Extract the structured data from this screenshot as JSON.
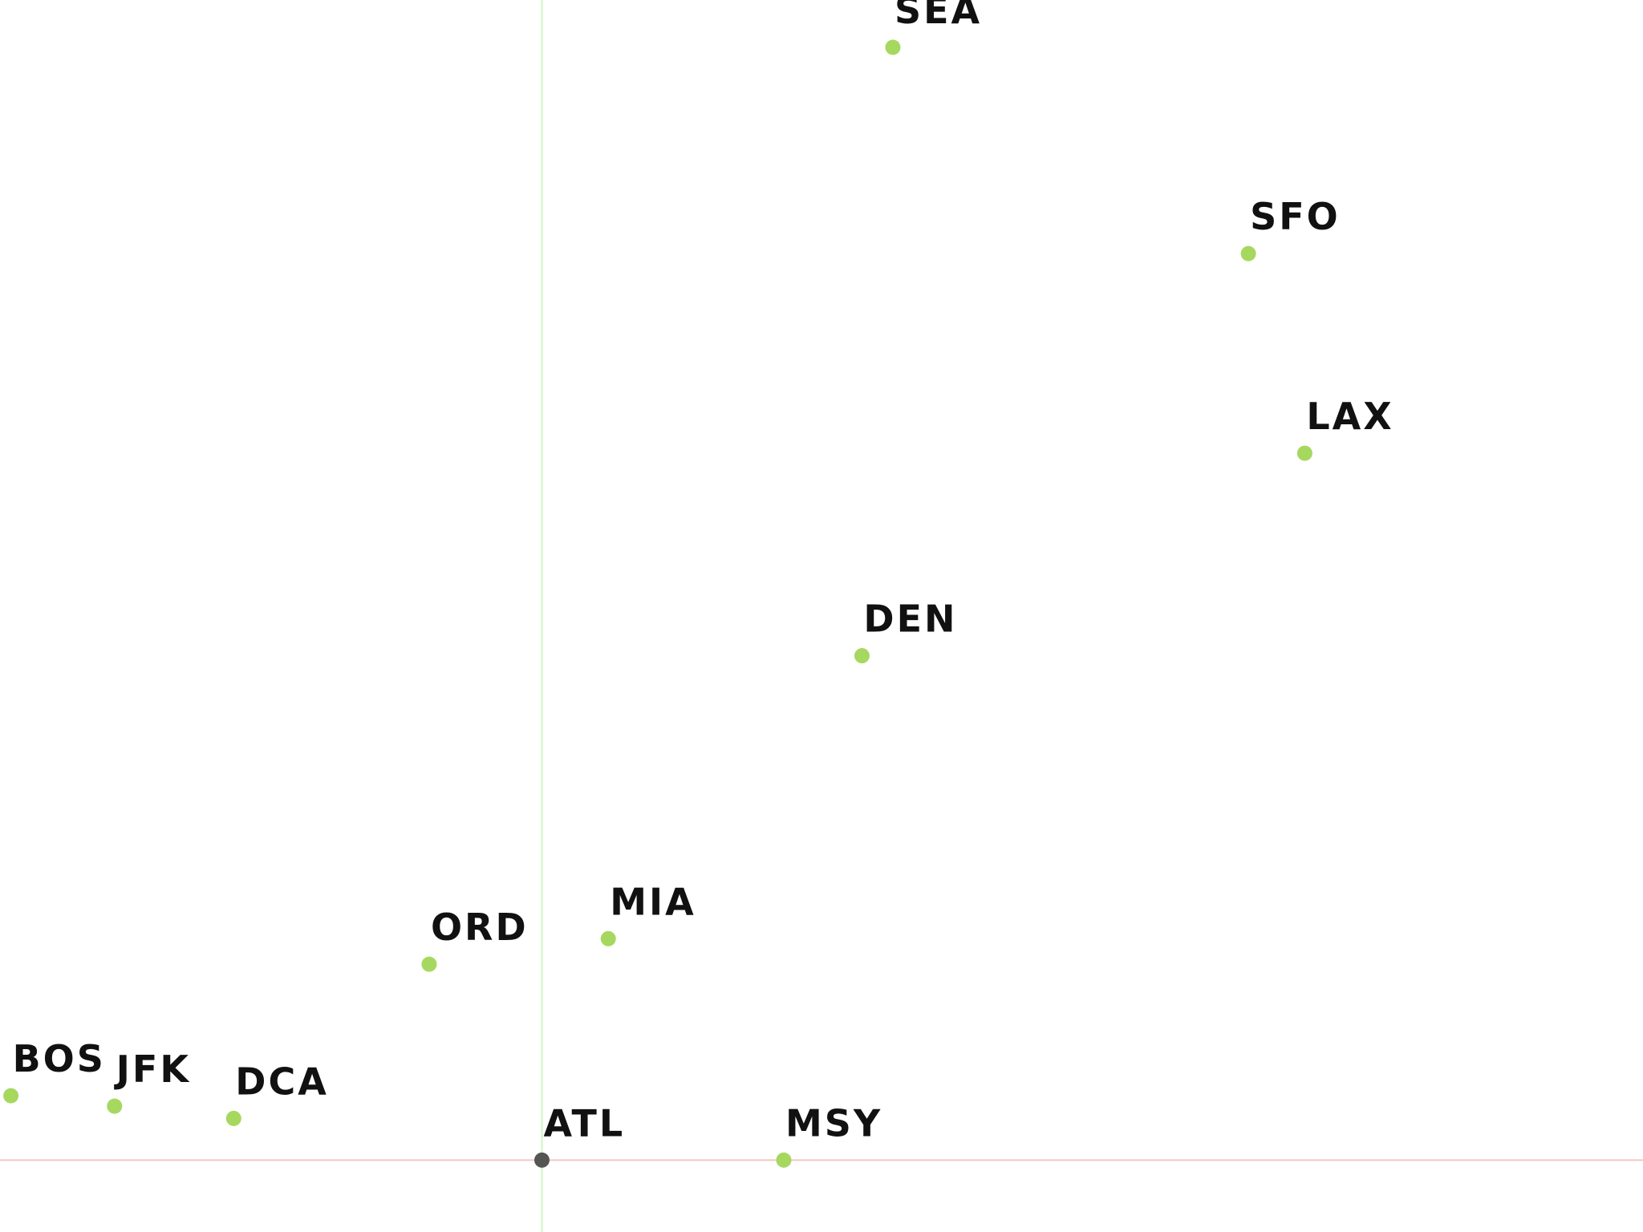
{
  "chart_data": {
    "type": "scatter",
    "title": "",
    "xlabel": "",
    "ylabel": "",
    "grid": false,
    "colors": {
      "point": "#a6d85f",
      "origin_point": "#555555",
      "x_axis_line": "#f6c3c8",
      "y_axis_line": "#cdf5c2",
      "label": "#111111"
    },
    "xlim": [
      -596,
      1211
    ],
    "ylim": [
      -76,
      1226
    ],
    "origin": "ATL",
    "points": [
      {
        "name": "SEA",
        "x": 386,
        "y": 1176
      },
      {
        "name": "SFO",
        "x": 777,
        "y": 958
      },
      {
        "name": "LAX",
        "x": 839,
        "y": 747
      },
      {
        "name": "DEN",
        "x": 352,
        "y": 533
      },
      {
        "name": "MIA",
        "x": 73,
        "y": 234
      },
      {
        "name": "ORD",
        "x": -124,
        "y": 207
      },
      {
        "name": "BOS",
        "x": -584,
        "y": 68
      },
      {
        "name": "JFK",
        "x": -470,
        "y": 57
      },
      {
        "name": "DCA",
        "x": -339,
        "y": 44
      },
      {
        "name": "ATL",
        "x": 0,
        "y": 0
      },
      {
        "name": "MSY",
        "x": 266,
        "y": 0
      }
    ]
  }
}
